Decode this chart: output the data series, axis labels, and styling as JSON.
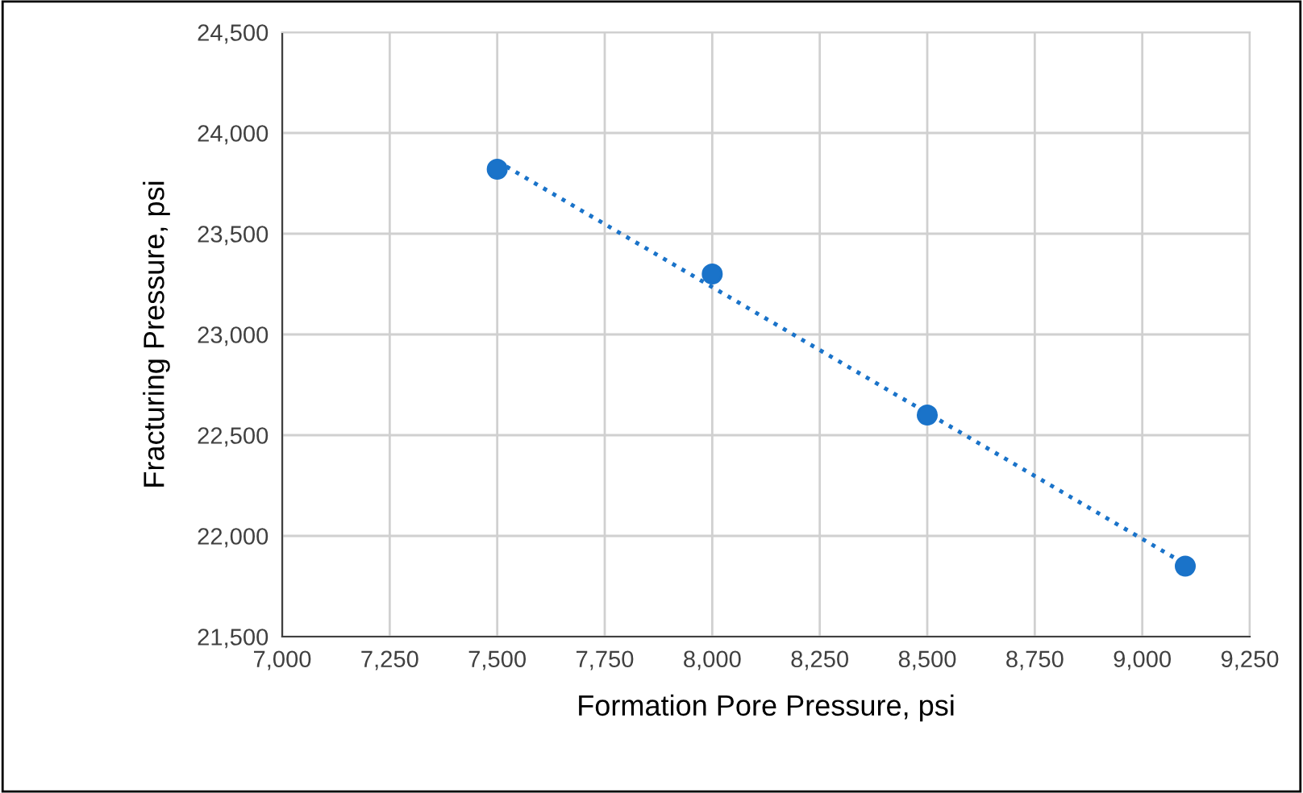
{
  "chart_data": {
    "type": "scatter",
    "xlabel": "Formation Pore Pressure, psi",
    "ylabel": "Fracturing Pressure, psi",
    "series": [
      {
        "color": "#1a73c9",
        "x": [
          7500,
          8000,
          8500,
          9100
        ],
        "values": [
          23820,
          23300,
          22600,
          21850
        ],
        "marker": "circle"
      },
      {
        "type": "line",
        "color": "#1a73c9",
        "x": [
          7500,
          9100
        ],
        "values": [
          23860,
          21860
        ],
        "line_style": "dotted",
        "marker": "none"
      }
    ],
    "xlim": [
      7000,
      9250
    ],
    "xticks": [
      {
        "value": 7000,
        "label": "7,000"
      },
      {
        "value": 7250,
        "label": "7,250"
      },
      {
        "value": 7500,
        "label": "7,500"
      },
      {
        "value": 7750,
        "label": "7,750"
      },
      {
        "value": 8000,
        "label": "8,000"
      },
      {
        "value": 8250,
        "label": "8,250"
      },
      {
        "value": 8500,
        "label": "8,500"
      },
      {
        "value": 8750,
        "label": "8,750"
      },
      {
        "value": 9000,
        "label": "9,000"
      },
      {
        "value": 9250,
        "label": "9,250"
      }
    ],
    "ylim": [
      21500,
      24500
    ],
    "yticks": [
      {
        "value": 21500,
        "label": "21,500"
      },
      {
        "value": 22000,
        "label": "22,000"
      },
      {
        "value": 22500,
        "label": "22,500"
      },
      {
        "value": 23000,
        "label": "23,000"
      },
      {
        "value": 23500,
        "label": "23,500"
      },
      {
        "value": 24000,
        "label": "24,000"
      },
      {
        "value": 24500,
        "label": "24,500"
      }
    ],
    "grid": true
  }
}
